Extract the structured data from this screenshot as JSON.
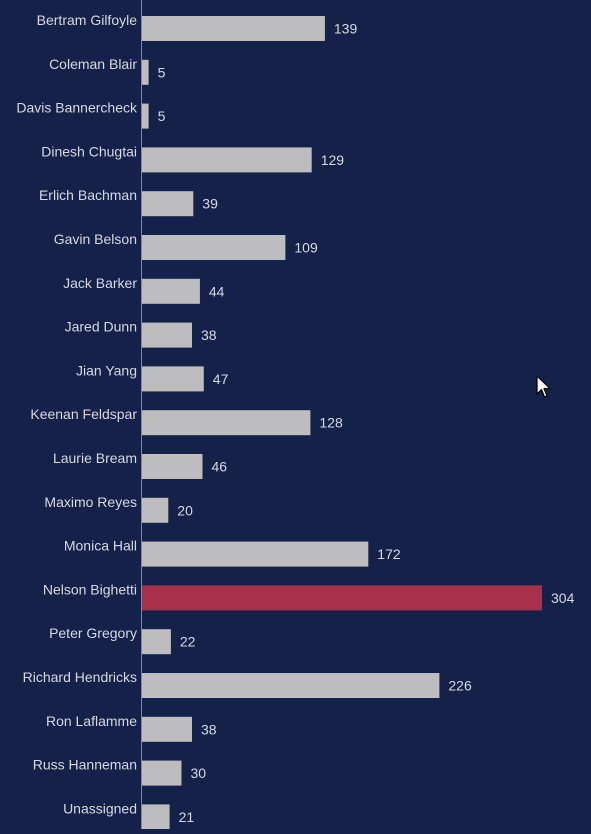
{
  "chart_data": {
    "type": "bar",
    "orientation": "horizontal",
    "categories": [
      "Bertram Gilfoyle",
      "Coleman Blair",
      "Davis Bannercheck",
      "Dinesh Chugtai",
      "Erlich Bachman",
      "Gavin Belson",
      "Jack Barker",
      "Jared Dunn",
      "Jian Yang",
      "Keenan Feldspar",
      "Laurie Bream",
      "Maximo Reyes",
      "Monica Hall",
      "Nelson Bighetti",
      "Peter Gregory",
      "Richard Hendricks",
      "Ron Laflamme",
      "Russ Hanneman",
      "Unassigned"
    ],
    "values": [
      139,
      5,
      5,
      129,
      39,
      109,
      44,
      38,
      47,
      128,
      46,
      20,
      172,
      304,
      22,
      226,
      38,
      30,
      21
    ],
    "highlight_index": 13,
    "title": "",
    "xlabel": "",
    "ylabel": "",
    "xlim": [
      0,
      304
    ],
    "grid": false,
    "legend": "none",
    "data_labels": true
  },
  "colors": {
    "background": "#14224a",
    "bar": "#bdbdbf",
    "highlight": "#a8304a",
    "axis": "#7d869f",
    "text": "#d6d9e2"
  },
  "cursor_icon": "mouse-pointer-icon"
}
